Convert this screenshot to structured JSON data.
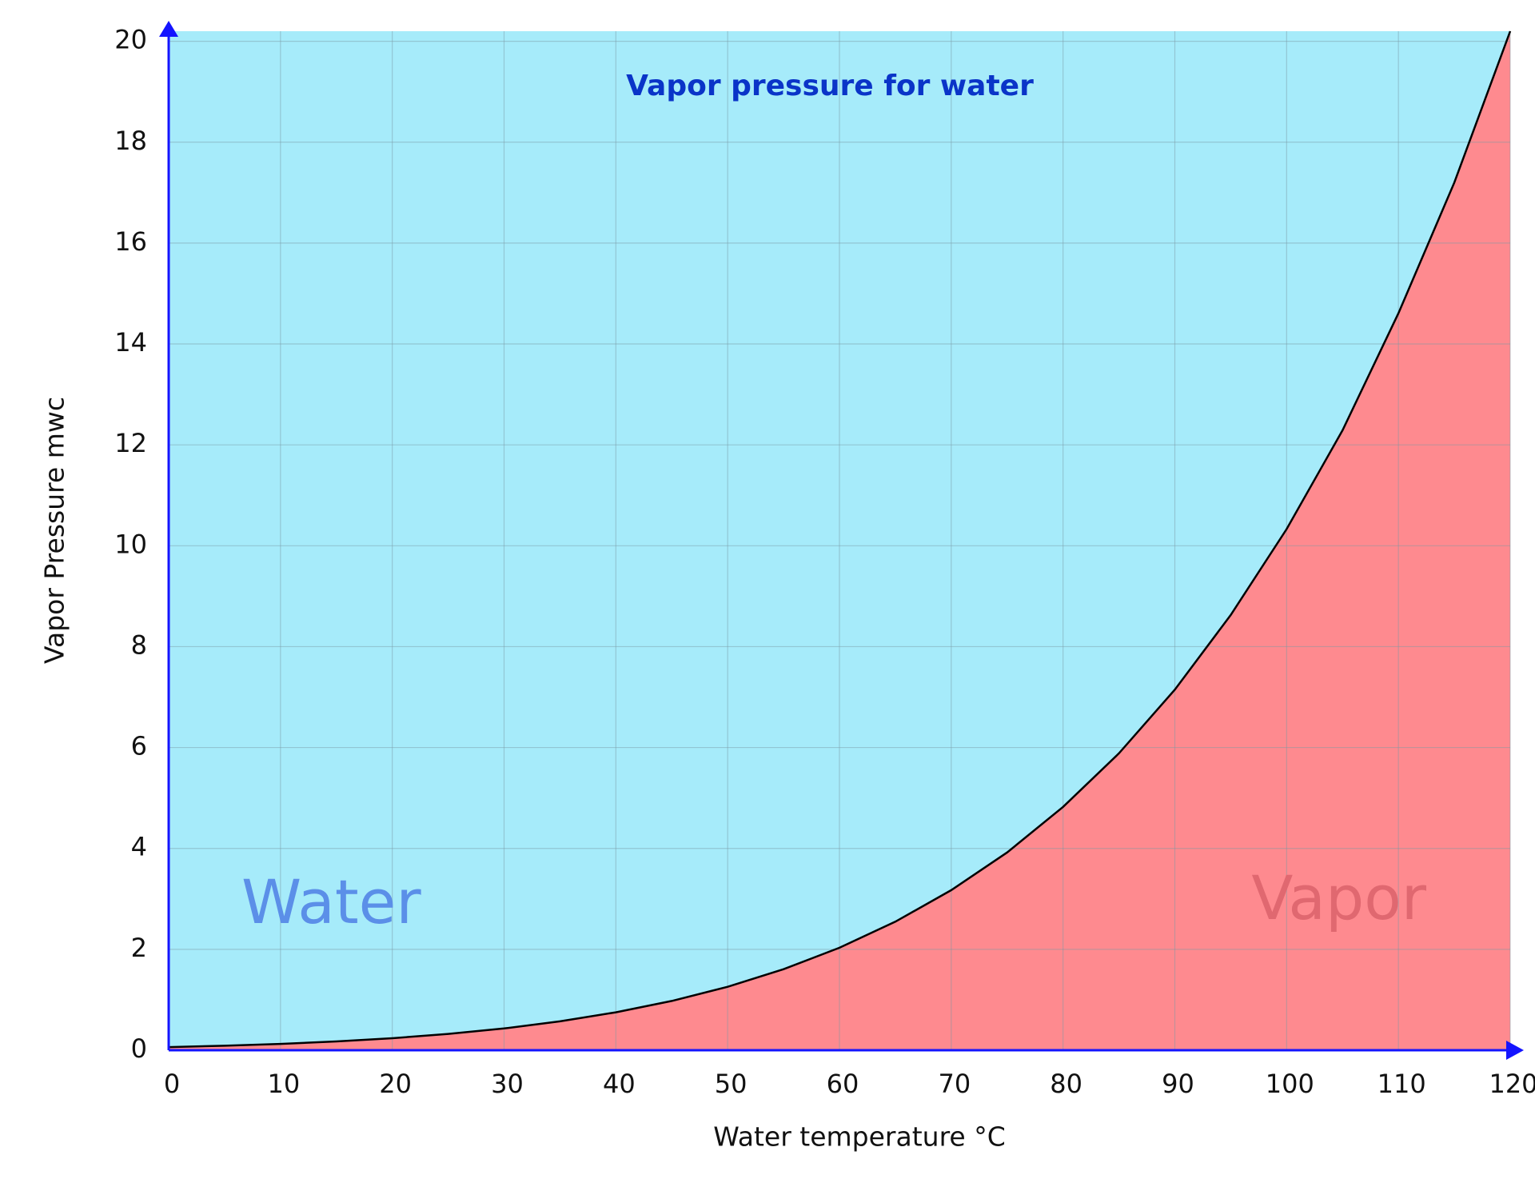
{
  "chart_data": {
    "type": "area",
    "title": "Vapor pressure for water",
    "x_label": "Water temperature °C",
    "y_label": "Vapor Pressure mwc",
    "annotations": [
      "Water",
      "Vapor"
    ],
    "x": [
      0,
      5,
      10,
      15,
      20,
      25,
      30,
      35,
      40,
      45,
      50,
      55,
      60,
      65,
      70,
      75,
      80,
      85,
      90,
      95,
      100,
      105,
      110,
      115,
      120
    ],
    "values": [
      0.062,
      0.089,
      0.125,
      0.174,
      0.238,
      0.323,
      0.432,
      0.573,
      0.752,
      0.977,
      1.258,
      1.606,
      2.031,
      2.548,
      3.173,
      3.921,
      4.823,
      5.886,
      7.147,
      8.627,
      10.33,
      12.29,
      14.61,
      17.2,
      20.2
    ],
    "xlim": [
      0,
      120
    ],
    "xticks": [
      0,
      10,
      20,
      30,
      40,
      50,
      60,
      70,
      80,
      90,
      100,
      110,
      120
    ],
    "ylim": [
      0,
      20.2
    ],
    "yticks": [
      0,
      2,
      4,
      6,
      8,
      10,
      12,
      14,
      16,
      18,
      20
    ],
    "grid": true,
    "background_color": "#a6ebfa",
    "area_color": "#fe8a8f",
    "line_color": "#000000"
  }
}
